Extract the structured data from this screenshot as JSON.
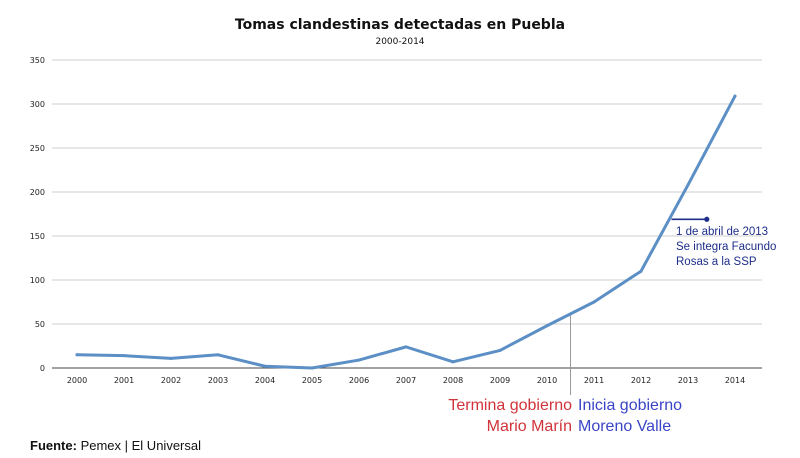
{
  "chart_data": {
    "type": "line",
    "title": "Tomas clandestinas detectadas en Puebla",
    "subtitle": "2000-2014",
    "x": [
      "2000",
      "2001",
      "2002",
      "2003",
      "2004",
      "2005",
      "2006",
      "2007",
      "2008",
      "2009",
      "2010",
      "2011",
      "2012",
      "2013",
      "2014"
    ],
    "series": [
      {
        "values": [
          15,
          14,
          11,
          15,
          2,
          0,
          9,
          24,
          7,
          20,
          48,
          75,
          110,
          208,
          309
        ],
        "color": "#5b8fc5"
      }
    ],
    "ylim": [
      0,
      350
    ],
    "yticks": [
      0,
      50,
      100,
      150,
      200,
      250,
      300,
      350
    ],
    "grid": true,
    "divider_x": 10.5,
    "annotation_marker": {
      "x_start": 12.65,
      "x_end": 13.4,
      "y": 169,
      "color": "#1e2e8a"
    },
    "annotations": {
      "event": [
        "1 de abril de 2013",
        "Se integra Facundo",
        "Rosas a la SSP"
      ],
      "left_line1": "Termina gobierno",
      "left_line2": "Mario Marín",
      "right_line1": "Inicia gobierno",
      "right_line2": "Moreno Valle"
    },
    "colors": {
      "line": "#5b8fc5",
      "annotation": "#1e2e8a",
      "left_text": "#d0333a",
      "right_text": "#3a45c6"
    }
  },
  "source": {
    "label": "Fuente:",
    "text": "Pemex | El Universal"
  }
}
